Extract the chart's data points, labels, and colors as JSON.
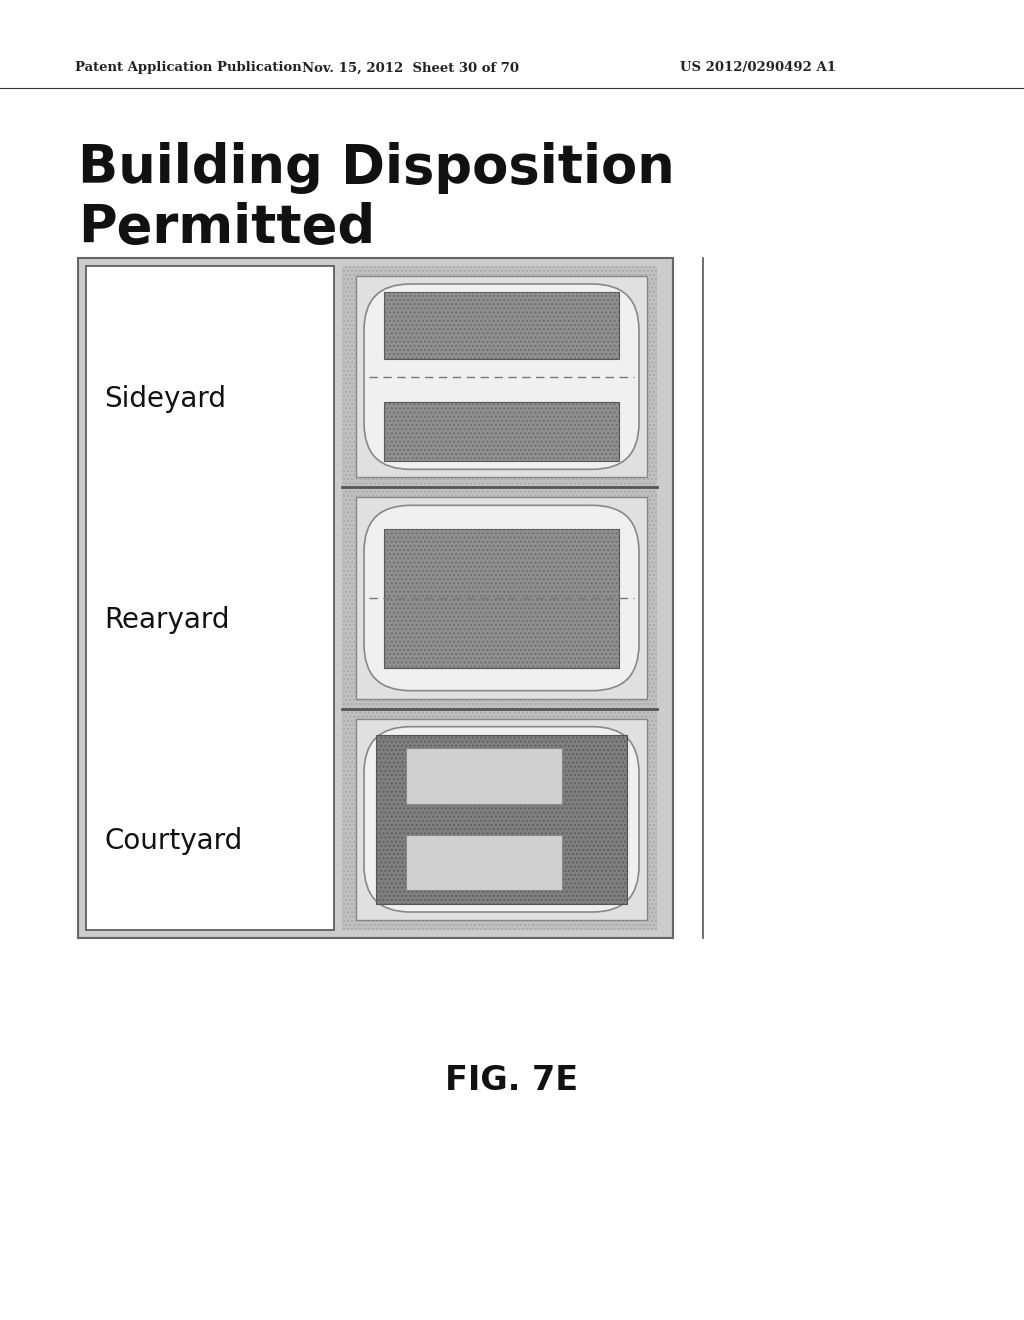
{
  "bg_color": "#ffffff",
  "header_left": "Patent Application Publication",
  "header_mid": "Nov. 15, 2012  Sheet 30 of 70",
  "header_right": "US 2012/0290492 A1",
  "title_line1": "Building Disposition",
  "title_line2": "Permitted",
  "fig_label": "FIG. 7E",
  "labels": [
    "Sideyard",
    "Rearyard",
    "Courtyard"
  ],
  "color_bg": "#ffffff",
  "color_outer_border": "#555555",
  "color_left_panel": "#ffffff",
  "color_right_outer": "#c0c0c0",
  "color_right_inner": "#d8d8d8",
  "color_building": "#888888",
  "color_light_inner": "#e8e8e8",
  "color_divider": "#444444"
}
